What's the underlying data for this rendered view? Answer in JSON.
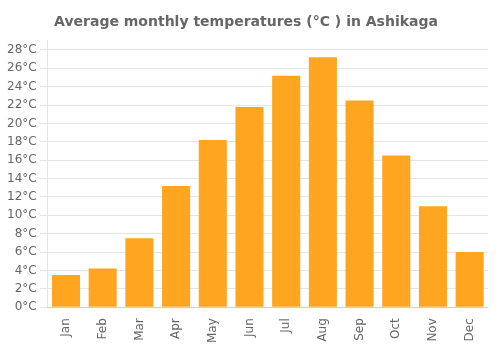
{
  "chart_data": {
    "type": "bar",
    "title": "Average monthly temperatures (°C ) in Ashikaga",
    "categories": [
      "Jan",
      "Feb",
      "Mar",
      "Apr",
      "May",
      "Jun",
      "Jul",
      "Aug",
      "Sep",
      "Oct",
      "Nov",
      "Dec"
    ],
    "values": [
      3.5,
      4.2,
      7.5,
      13.2,
      18.2,
      21.8,
      25.2,
      27.2,
      22.5,
      16.5,
      11.0,
      6.0
    ],
    "color": "#FFA520",
    "ylim": [
      0,
      29
    ],
    "yticks": [
      {
        "value": 0,
        "label": "0°C"
      },
      {
        "value": 2,
        "label": "2°C"
      },
      {
        "value": 4,
        "label": "4°C"
      },
      {
        "value": 6,
        "label": "6°C"
      },
      {
        "value": 8,
        "label": "8°C"
      },
      {
        "value": 10,
        "label": "10°C"
      },
      {
        "value": 12,
        "label": "12°C"
      },
      {
        "value": 14,
        "label": "14°C"
      },
      {
        "value": 16,
        "label": "16°C"
      },
      {
        "value": 18,
        "label": "18°C"
      },
      {
        "value": 20,
        "label": "20°C"
      },
      {
        "value": 22,
        "label": "22°C"
      },
      {
        "value": 24,
        "label": "24°C"
      },
      {
        "value": 26,
        "label": "26°C"
      },
      {
        "value": 28,
        "label": "28°C"
      }
    ],
    "grid": true
  }
}
